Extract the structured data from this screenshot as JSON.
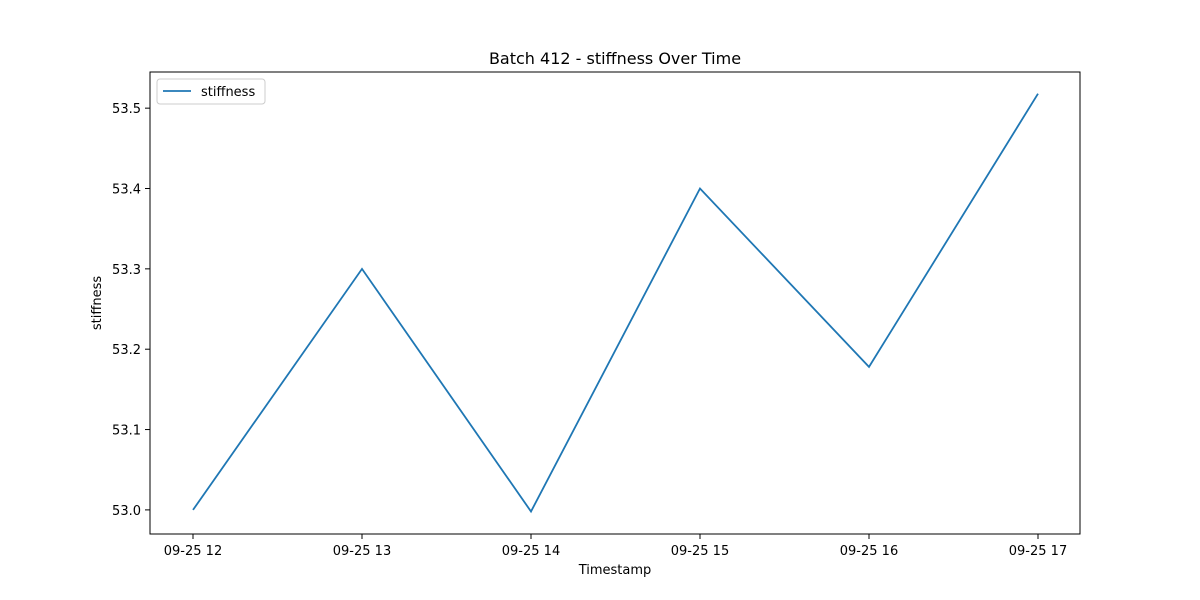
{
  "chart_data": {
    "type": "line",
    "title": "Batch 412 - stiffness Over Time",
    "xlabel": "Timestamp",
    "ylabel": "stiffness",
    "x": [
      "09-25 12",
      "09-25 13",
      "09-25 14",
      "09-25 15",
      "09-25 16",
      "09-25 17"
    ],
    "x_ticks": [
      "09-25 12",
      "09-25 13",
      "09-25 14",
      "09-25 15",
      "09-25 16",
      "09-25 17"
    ],
    "y_ticks": [
      "53.0",
      "53.1",
      "53.2",
      "53.3",
      "53.4",
      "53.5"
    ],
    "ylim": [
      52.97,
      53.545
    ],
    "grid": false,
    "legend": {
      "position": "top-left",
      "entries": [
        "stiffness"
      ]
    },
    "series": [
      {
        "name": "stiffness",
        "color": "#1f77b4",
        "values": [
          53.0,
          53.3,
          52.998,
          53.4,
          53.178,
          53.518
        ]
      }
    ]
  }
}
